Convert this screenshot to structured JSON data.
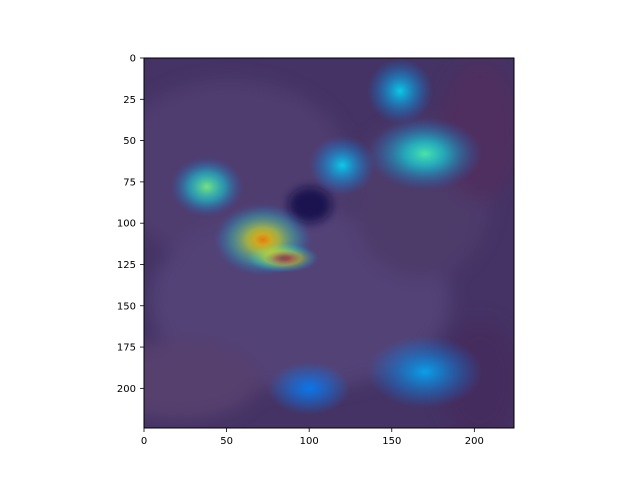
{
  "chart_data": {
    "type": "heatmap",
    "title": "",
    "xlabel": "",
    "ylabel": "",
    "xlim": [
      0,
      224
    ],
    "ylim": [
      224,
      0
    ],
    "xticks": [
      0,
      50,
      100,
      150,
      200
    ],
    "yticks": [
      0,
      25,
      50,
      75,
      100,
      125,
      150,
      175,
      200
    ],
    "grid": false,
    "colormap": "jet",
    "hotspots": [
      {
        "x": 84,
        "y": 121,
        "rx": 22,
        "ry": 9,
        "level": 1.0
      },
      {
        "x": 72,
        "y": 110,
        "rx": 30,
        "ry": 22,
        "level": 0.75
      },
      {
        "x": 38,
        "y": 78,
        "rx": 22,
        "ry": 18,
        "level": 0.5
      },
      {
        "x": 170,
        "y": 58,
        "rx": 35,
        "ry": 22,
        "level": 0.45
      },
      {
        "x": 155,
        "y": 20,
        "rx": 20,
        "ry": 20,
        "level": 0.35
      },
      {
        "x": 120,
        "y": 65,
        "rx": 20,
        "ry": 18,
        "level": 0.35
      },
      {
        "x": 100,
        "y": 200,
        "rx": 25,
        "ry": 16,
        "level": 0.25
      },
      {
        "x": 170,
        "y": 190,
        "rx": 35,
        "ry": 22,
        "level": 0.3
      }
    ]
  },
  "colors": {
    "background_overlay": "#2b1a78",
    "photo_base": "#4a3b3a"
  }
}
